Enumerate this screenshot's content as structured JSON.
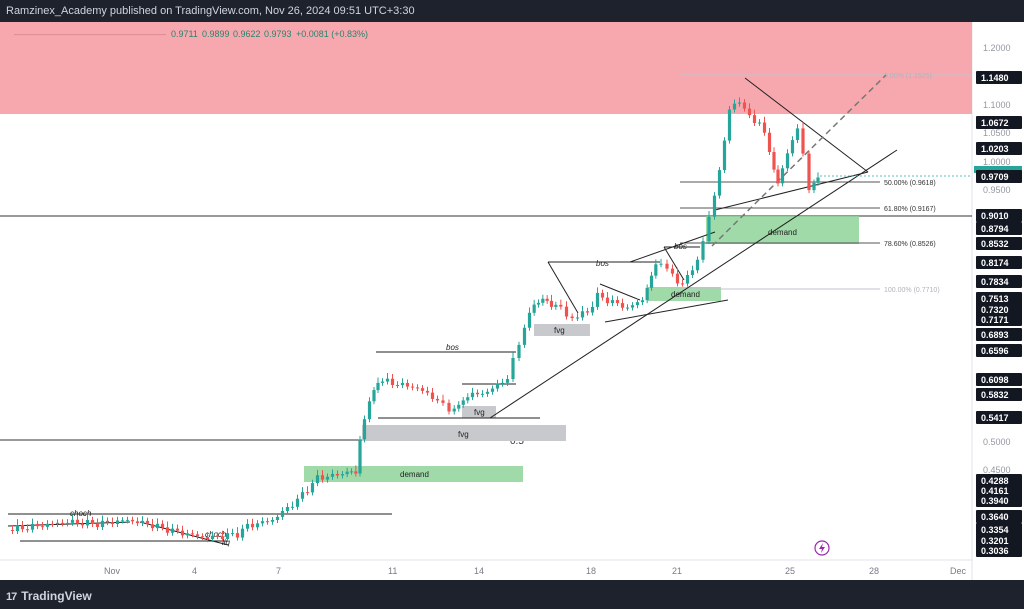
{
  "header": {
    "publisher_line": "Ramzinex_Academy published on TradingView.com, Nov 26, 2024 09:51 UTC+3:30"
  },
  "legend": {
    "open": "0.9711",
    "high": "0.9899",
    "low": "0.9622",
    "close": "0.9793",
    "change": "+0.0081 (+0.83%)"
  },
  "price_axis": {
    "ticks": [
      "1.2000",
      "1.1000",
      "1.0500",
      "1.0000",
      "0.9500",
      "0.5000",
      "0.4500"
    ],
    "badges": [
      {
        "text": "1.1480",
        "style": "dark"
      },
      {
        "text": "1.0672",
        "style": "dark"
      },
      {
        "text": "1.0203",
        "style": "dark"
      },
      {
        "text": "0.9709",
        "style": "dark"
      },
      {
        "text": "0.9010",
        "style": "dark"
      },
      {
        "text": "0.8794",
        "style": "dark"
      },
      {
        "text": "0.8532",
        "style": "dark"
      },
      {
        "text": "0.8174",
        "style": "dark"
      },
      {
        "text": "0.7834",
        "style": "dark"
      },
      {
        "text": "0.7513",
        "style": "dark"
      },
      {
        "text": "0.7320",
        "style": "dark"
      },
      {
        "text": "0.7171",
        "style": "dark"
      },
      {
        "text": "0.6893",
        "style": "dark"
      },
      {
        "text": "0.6596",
        "style": "dark"
      },
      {
        "text": "0.6098",
        "style": "dark"
      },
      {
        "text": "0.5832",
        "style": "dark"
      },
      {
        "text": "0.5417",
        "style": "dark"
      },
      {
        "text": "0.4288",
        "style": "dark"
      },
      {
        "text": "0.4161",
        "style": "dark"
      },
      {
        "text": "0.3940",
        "style": "dark"
      },
      {
        "text": "0.3640",
        "style": "dark"
      },
      {
        "text": "0.3354",
        "style": "dark"
      },
      {
        "text": "0.3201",
        "style": "dark"
      },
      {
        "text": "0.3036",
        "style": "dark"
      }
    ],
    "current_price_color": "#26a69a"
  },
  "time_axis": {
    "labels": [
      "Nov",
      "4",
      "7",
      "11",
      "14",
      "18",
      "21",
      "25",
      "28",
      "Dec"
    ]
  },
  "annotations": {
    "fib": [
      "0.00% (1.1525)",
      "50.00% (0.9618)",
      "61.80% (0.9167)",
      "78.60% (0.8526)",
      "100.00% (0.7710)"
    ],
    "half_level": "0.5",
    "zones": {
      "demand_low": "demand",
      "demand_mid": "demand",
      "demand_high": "demand",
      "fvg_low": "fvg",
      "fvg_mid": "fvg",
      "fvg_high": "fvg"
    },
    "labels": {
      "bos_1": "bos",
      "bos_2": "bos",
      "bos_3": "bos",
      "choch_1": "choch",
      "choch_2": "choch",
      "liq": "liq"
    }
  },
  "footer": {
    "brand": "TradingView",
    "brand_mark": "17"
  },
  "colors": {
    "background": "#ffffff",
    "frame": "#1e222d",
    "bull": "#26a69a",
    "bear": "#ef5350",
    "supply_zone": "#f5a6ab",
    "demand_zone": "#8fd49a",
    "fvg_zone": "#c8c9cc"
  }
}
